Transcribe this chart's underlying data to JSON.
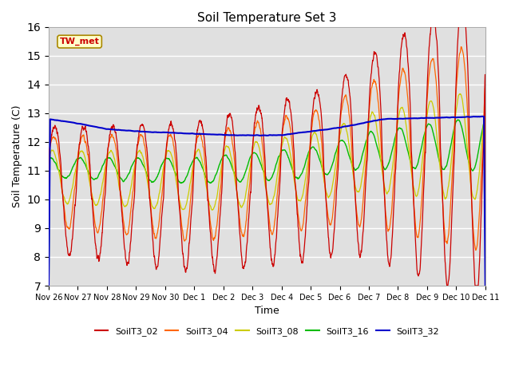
{
  "title": "Soil Temperature Set 3",
  "xlabel": "Time",
  "ylabel": "Soil Temperature (C)",
  "ylim": [
    7.0,
    16.0
  ],
  "yticks": [
    7.0,
    8.0,
    9.0,
    10.0,
    11.0,
    12.0,
    13.0,
    14.0,
    15.0,
    16.0
  ],
  "colors": {
    "SoilT3_02": "#cc0000",
    "SoilT3_04": "#ff6600",
    "SoilT3_08": "#cccc00",
    "SoilT3_16": "#00bb00",
    "SoilT3_32": "#0000cc"
  },
  "bg_color": "#e0e0e0",
  "annotation_text": "TW_met",
  "annotation_color": "#cc0000",
  "annotation_bg": "#ffffcc",
  "annotation_border": "#aa8800",
  "day_labels": [
    "Nov 26",
    "Nov 27",
    "Nov 28",
    "Nov 29",
    "Nov 30",
    "Dec 1",
    "Dec 2",
    "Dec 3",
    "Dec 4",
    "Dec 5",
    "Dec 6",
    "Dec 7",
    "Dec 8",
    "Dec 9",
    "Dec 10",
    "Dec 11"
  ]
}
